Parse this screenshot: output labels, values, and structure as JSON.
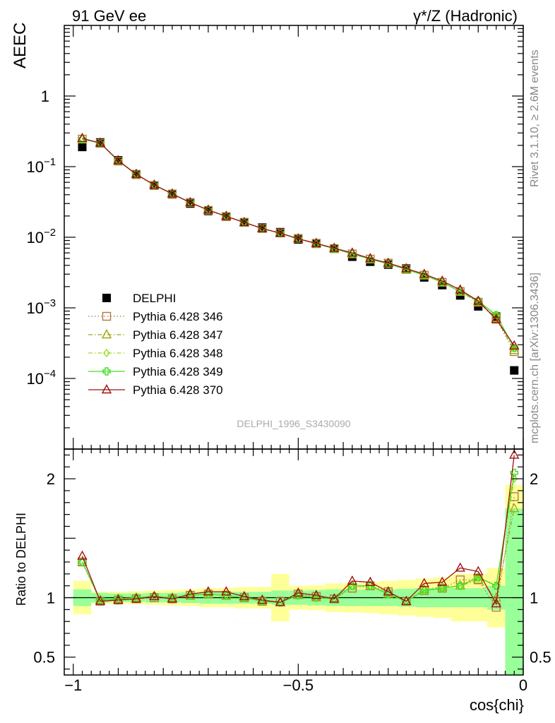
{
  "header": {
    "left": "91 GeV ee",
    "right": "γ*/Z (Hadronic)"
  },
  "side_notes": {
    "version": "Rivet 3.1.10, ≥ 2.6M events",
    "site": "mcplots.cern.ch [arXiv:1306.3436]"
  },
  "watermark": "DELPHI_1996_S3430090",
  "chart_data": [
    {
      "type": "scatter",
      "panel": "main",
      "ylabel": "AEEC",
      "xlabel": "cos{chi}",
      "xlim": [
        -1.02,
        0.0
      ],
      "ylim": [
        1e-05,
        10
      ],
      "yscale": "log",
      "x": [
        -0.98,
        -0.94,
        -0.9,
        -0.86,
        -0.82,
        -0.78,
        -0.74,
        -0.7,
        -0.66,
        -0.62,
        -0.58,
        -0.54,
        -0.5,
        -0.46,
        -0.42,
        -0.38,
        -0.34,
        -0.3,
        -0.26,
        -0.22,
        -0.18,
        -0.14,
        -0.1,
        -0.06,
        -0.02
      ],
      "yticks": [
        {
          "v": 0.0001,
          "label": "10",
          "exp": "−4"
        },
        {
          "v": 0.001,
          "label": "10",
          "exp": "−3"
        },
        {
          "v": 0.01,
          "label": "10",
          "exp": "−2"
        },
        {
          "v": 0.1,
          "label": "10",
          "exp": "−1"
        },
        {
          "v": 1,
          "label": "1",
          "exp": ""
        }
      ],
      "series": [
        {
          "name": "DELPHI",
          "color": "#000000",
          "marker": "square-filled",
          "line": "none",
          "values": [
            0.19,
            0.22,
            0.123,
            0.078,
            0.054,
            0.0405,
            0.03,
            0.0235,
            0.0195,
            0.0162,
            0.0137,
            0.0118,
            0.0093,
            0.0081,
            0.0069,
            0.0053,
            0.0045,
            0.0041,
            0.0036,
            0.0027,
            0.0021,
            0.0015,
            0.00105,
            0.00075,
            0.00013
          ]
        },
        {
          "name": "Pythia 6.428 346",
          "color": "#b07b40",
          "marker": "square-open",
          "line": "dotted",
          "values": [
            0.245,
            0.214,
            0.12,
            0.077,
            0.054,
            0.041,
            0.031,
            0.024,
            0.0196,
            0.0163,
            0.0133,
            0.0115,
            0.0096,
            0.0082,
            0.0069,
            0.0058,
            0.0049,
            0.0043,
            0.0035,
            0.0029,
            0.0023,
            0.0017,
            0.0012,
            0.00069,
            0.00024
          ]
        },
        {
          "name": "Pythia 6.428 347",
          "color": "#9aaa10",
          "marker": "triangle-open",
          "line": "dashdot",
          "values": [
            0.247,
            0.216,
            0.121,
            0.078,
            0.055,
            0.0412,
            0.031,
            0.0243,
            0.0199,
            0.0162,
            0.0133,
            0.0115,
            0.0095,
            0.0081,
            0.0069,
            0.0059,
            0.0049,
            0.0042,
            0.0035,
            0.0029,
            0.0023,
            0.0017,
            0.0012,
            0.00072,
            0.00025
          ]
        },
        {
          "name": "Pythia 6.428 348",
          "color": "#99dd22",
          "marker": "diamond-open",
          "line": "dashdot",
          "values": [
            0.246,
            0.215,
            0.122,
            0.078,
            0.055,
            0.0412,
            0.031,
            0.0243,
            0.0198,
            0.0162,
            0.0133,
            0.0114,
            0.0095,
            0.0081,
            0.0069,
            0.0059,
            0.0049,
            0.0042,
            0.0035,
            0.0029,
            0.0023,
            0.0017,
            0.00125,
            0.00078,
            0.00027
          ]
        },
        {
          "name": "Pythia 6.428 349",
          "color": "#44dd22",
          "marker": "cross-open",
          "line": "solid",
          "values": [
            0.246,
            0.215,
            0.121,
            0.078,
            0.055,
            0.0412,
            0.031,
            0.0243,
            0.0198,
            0.0162,
            0.0133,
            0.0114,
            0.0095,
            0.0081,
            0.0069,
            0.0058,
            0.0049,
            0.0042,
            0.0035,
            0.0029,
            0.0023,
            0.0017,
            0.00125,
            0.00079,
            0.00027
          ]
        },
        {
          "name": "Pythia 6.428 370",
          "color": "#a01010",
          "marker": "triangle-open",
          "line": "solid",
          "values": [
            0.252,
            0.216,
            0.122,
            0.078,
            0.055,
            0.0412,
            0.031,
            0.0243,
            0.0198,
            0.0162,
            0.0133,
            0.0114,
            0.0095,
            0.0082,
            0.007,
            0.006,
            0.005,
            0.0043,
            0.0036,
            0.003,
            0.0024,
            0.0018,
            0.00125,
            0.00069,
            0.00029
          ]
        }
      ]
    },
    {
      "type": "scatter",
      "panel": "ratio",
      "ylabel": "Ratio to DELPHI",
      "xlabel": "cos{chi}",
      "xlim": [
        -1.02,
        0.0
      ],
      "ylim": [
        0.35,
        2.25
      ],
      "yscale": "linear",
      "yticks": [
        {
          "v": 0.5,
          "label": "0.5"
        },
        {
          "v": 1,
          "label": "1"
        },
        {
          "v": 2,
          "label": "2"
        }
      ],
      "xticks": [
        {
          "v": -1,
          "label": "−1"
        },
        {
          "v": -0.5,
          "label": "−0.5"
        },
        {
          "v": 0,
          "label": "0"
        }
      ],
      "x": [
        -0.98,
        -0.94,
        -0.9,
        -0.86,
        -0.82,
        -0.78,
        -0.74,
        -0.7,
        -0.66,
        -0.62,
        -0.58,
        -0.54,
        -0.5,
        -0.46,
        -0.42,
        -0.38,
        -0.34,
        -0.3,
        -0.26,
        -0.22,
        -0.18,
        -0.14,
        -0.1,
        -0.06,
        -0.02
      ],
      "band_inner": [
        0.07,
        0.04,
        0.035,
        0.035,
        0.04,
        0.04,
        0.045,
        0.05,
        0.05,
        0.05,
        0.05,
        0.06,
        0.06,
        0.065,
        0.07,
        0.07,
        0.07,
        0.07,
        0.075,
        0.08,
        0.08,
        0.08,
        0.08,
        0.1,
        0.75
      ],
      "band_outer": [
        0.14,
        0.05,
        0.05,
        0.055,
        0.06,
        0.065,
        0.07,
        0.08,
        0.08,
        0.09,
        0.09,
        0.2,
        0.1,
        0.105,
        0.12,
        0.125,
        0.13,
        0.14,
        0.15,
        0.16,
        0.17,
        0.2,
        0.2,
        0.25,
        0.95
      ],
      "series": [
        {
          "name": "Pythia 6.428 346",
          "color": "#b07b40",
          "marker": "square-open",
          "line": "dotted",
          "values": [
            1.3,
            0.97,
            0.98,
            0.99,
            1.0,
            0.99,
            1.02,
            1.03,
            1.02,
            1.0,
            0.97,
            0.97,
            1.03,
            1.01,
            0.99,
            1.08,
            1.1,
            1.05,
            0.97,
            1.06,
            1.08,
            1.15,
            1.15,
            0.92,
            1.85
          ]
        },
        {
          "name": "Pythia 6.428 347",
          "color": "#9aaa10",
          "marker": "triangle-open",
          "line": "dashdot",
          "values": [
            1.3,
            0.98,
            0.99,
            1.0,
            1.01,
            1.0,
            1.02,
            1.03,
            1.02,
            1.0,
            0.97,
            0.96,
            1.02,
            1.0,
            0.99,
            1.1,
            1.1,
            1.03,
            0.97,
            1.07,
            1.09,
            1.1,
            1.15,
            1.0,
            1.75
          ]
        },
        {
          "name": "Pythia 6.428 348",
          "color": "#99dd22",
          "marker": "diamond-open",
          "line": "dashdot",
          "values": [
            1.3,
            0.98,
            0.99,
            1.0,
            1.01,
            1.0,
            1.02,
            1.03,
            1.02,
            1.0,
            0.97,
            0.96,
            1.02,
            1.0,
            0.99,
            1.1,
            1.1,
            1.03,
            0.97,
            1.07,
            1.09,
            1.1,
            1.18,
            1.1,
            2.0
          ]
        },
        {
          "name": "Pythia 6.428 349",
          "color": "#44dd22",
          "marker": "cross-open",
          "line": "solid",
          "values": [
            1.3,
            0.98,
            0.99,
            1.0,
            1.01,
            1.0,
            1.02,
            1.03,
            1.02,
            1.0,
            0.97,
            0.96,
            1.02,
            1.0,
            0.99,
            1.1,
            1.1,
            1.03,
            0.97,
            1.06,
            1.08,
            1.1,
            1.17,
            1.1,
            2.05
          ]
        },
        {
          "name": "Pythia 6.428 370",
          "color": "#a01010",
          "marker": "triangle-open",
          "line": "solid",
          "values": [
            1.35,
            0.97,
            0.98,
            0.99,
            1.01,
            0.99,
            1.03,
            1.05,
            1.05,
            1.01,
            0.98,
            0.96,
            1.04,
            1.02,
            0.99,
            1.14,
            1.13,
            1.05,
            0.97,
            1.12,
            1.13,
            1.25,
            1.22,
            0.95,
            2.2
          ]
        }
      ]
    }
  ]
}
